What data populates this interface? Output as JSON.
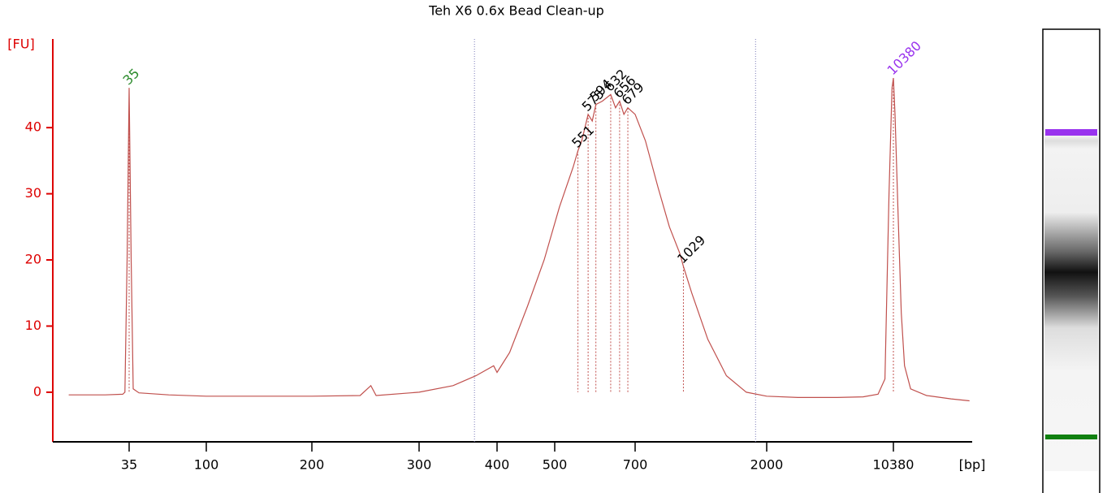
{
  "chart_data": {
    "type": "line",
    "title": "Teh X6 0.6x Bead Clean-up",
    "y_label": "[FU]",
    "x_label": "[bp]",
    "xscale": "log",
    "xlim": [
      12,
      29000
    ],
    "ylim": [
      -7.5,
      53.4
    ],
    "xticks": [
      35,
      100,
      200,
      300,
      400,
      500,
      700,
      2000,
      10380
    ],
    "yticks": [
      0,
      10,
      20,
      30,
      40
    ],
    "color": "#c0504d",
    "x": [
      15,
      25,
      32,
      33,
      34,
      35,
      36,
      37,
      40,
      60,
      100,
      150,
      200,
      240,
      250,
      255,
      300,
      340,
      370,
      395,
      400,
      420,
      450,
      480,
      510,
      540,
      551,
      560,
      575,
      585,
      594,
      610,
      632,
      645,
      656,
      668,
      679,
      700,
      760,
      840,
      920,
      1000,
      1029,
      1100,
      1250,
      1450,
      1700,
      2000,
      3000,
      5000,
      7000,
      8500,
      9300,
      9800,
      10200,
      10380,
      10600,
      11000,
      11500,
      12000,
      13000,
      16000,
      22000,
      28000
    ],
    "values": [
      -0.4,
      -0.4,
      -0.3,
      0,
      20,
      46,
      20,
      0.5,
      -0.1,
      -0.4,
      -0.6,
      -0.6,
      -0.6,
      -0.5,
      1,
      -0.5,
      0,
      1,
      2.5,
      4,
      3,
      6,
      13,
      20,
      28,
      34,
      36.5,
      38,
      42,
      41,
      43.5,
      44,
      45,
      43,
      44,
      42,
      43,
      42,
      38,
      31,
      25,
      21,
      19,
      15,
      8,
      2.5,
      0,
      -0.6,
      -0.8,
      -0.8,
      -0.7,
      -0.3,
      2,
      30,
      46,
      47.5,
      42,
      28,
      12,
      4,
      0.5,
      -0.5,
      -1,
      -1.3
    ],
    "peaks": [
      {
        "x": 35,
        "y": 46,
        "color": "#2a8a2a"
      },
      {
        "x": 551,
        "y": 36.5,
        "color": "#000000"
      },
      {
        "x": 575,
        "y": 42,
        "color": "#000000"
      },
      {
        "x": 594,
        "y": 43.5,
        "color": "#000000"
      },
      {
        "x": 632,
        "y": 45,
        "color": "#000000"
      },
      {
        "x": 656,
        "y": 44,
        "color": "#000000"
      },
      {
        "x": 679,
        "y": 43,
        "color": "#000000"
      },
      {
        "x": 1029,
        "y": 19,
        "color": "#000000"
      },
      {
        "x": 10380,
        "y": 47.5,
        "color": "#9933ee"
      }
    ],
    "regions": [
      368,
      1830
    ],
    "region_color": "#7a7ab8"
  }
}
